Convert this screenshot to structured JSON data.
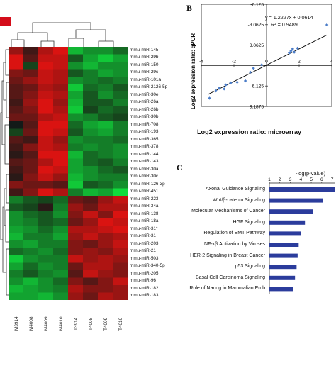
{
  "panel_b": {
    "letter": "B",
    "y_label": "Log2 expression ratio: qPCR",
    "x_label": "Log2 expression ratio: microarray",
    "equation": "y = 1.2227x + 0.0614",
    "r2": "R² = 0.9489",
    "y_ticks": [
      "9.1875",
      "6.125",
      "3.0625",
      "-3.0625",
      "-6.125"
    ],
    "x_ticks": [
      "-4",
      "-2",
      "0",
      "2",
      "4"
    ]
  },
  "panel_c": {
    "letter": "C",
    "axis_title": "-log(p-value)",
    "ticks": [
      "1",
      "2",
      "3",
      "4",
      "5",
      "6",
      "7"
    ]
  },
  "heatmap": {
    "genes": [
      "mmu-miR-145",
      "mmu-miR-29b",
      "mmu-miR-150",
      "mmu-miR-29c",
      "mmu-miR-101a",
      "mmu-miR-2126-5p",
      "mmu-miR-30e",
      "mmu-miR-26a",
      "mmu-miR-26b",
      "mmu-miR-30b",
      "mmu-miR-708",
      "mmu-miR-193",
      "mmu-miR-365",
      "mmu-miR-378",
      "mmu-miR-144",
      "mmu-miR-143",
      "mmu-miR-30a",
      "mmu-miR-30c",
      "mmu-miR-126-3p",
      "mmu-miR-451",
      "mmu-miR-223",
      "mmu-miR-34a",
      "mmu-miR-138",
      "mmu-miR-18a",
      "mmu-miR-31*",
      "mmu-miR-31",
      "mmu-miR-203",
      "mmu-miR-21",
      "mmu-miR-503",
      "mmu-miR-340-5p",
      "mmu-miR-205",
      "mmu-miR-96",
      "mmu-miR-182",
      "mmu-miR-183"
    ],
    "samples": [
      "M3914",
      "M4008",
      "M4009",
      "M4010",
      "T3914",
      "T4008",
      "T4009",
      "T4010"
    ],
    "values": [
      [
        0.6,
        0.2,
        0.7,
        0.9,
        -0.8,
        -0.6,
        -0.6,
        -0.4
      ],
      [
        0.9,
        0.3,
        0.8,
        0.8,
        -0.3,
        -0.7,
        -0.9,
        -0.7
      ],
      [
        0.9,
        -0.2,
        0.9,
        0.8,
        -0.6,
        -0.8,
        -0.6,
        -0.6
      ],
      [
        0.5,
        0.4,
        0.8,
        0.7,
        -0.3,
        -0.5,
        -0.7,
        -0.6
      ],
      [
        0.4,
        0.6,
        0.8,
        0.7,
        -0.6,
        -0.5,
        -0.4,
        -0.5
      ],
      [
        0.3,
        0.4,
        0.7,
        0.6,
        -0.9,
        -0.4,
        -0.5,
        -0.3
      ],
      [
        0.3,
        0.5,
        0.8,
        0.7,
        -0.7,
        -0.3,
        -0.6,
        -0.4
      ],
      [
        0.2,
        0.6,
        0.9,
        0.6,
        -0.8,
        -0.3,
        -0.3,
        -0.5
      ],
      [
        0.3,
        0.5,
        0.9,
        0.7,
        -0.9,
        -0.2,
        -0.4,
        -0.3
      ],
      [
        0.4,
        0.4,
        0.7,
        0.8,
        -0.6,
        -0.5,
        -0.3,
        -0.2
      ],
      [
        0.0,
        0.3,
        0.9,
        0.9,
        -0.4,
        -0.7,
        -0.8,
        -0.5
      ],
      [
        -0.2,
        0.4,
        0.9,
        0.8,
        -0.3,
        -0.6,
        -0.7,
        -0.5
      ],
      [
        0.3,
        0.2,
        0.8,
        0.6,
        -0.6,
        -0.5,
        -0.5,
        -0.4
      ],
      [
        0.2,
        0.5,
        0.8,
        0.7,
        -0.5,
        -0.6,
        -0.5,
        -0.6
      ],
      [
        0.1,
        0.3,
        0.9,
        0.9,
        -0.8,
        -0.4,
        -0.5,
        -0.6
      ],
      [
        0.3,
        0.4,
        0.7,
        0.9,
        -0.7,
        -0.4,
        -0.3,
        -0.5
      ],
      [
        0.2,
        0.4,
        0.9,
        0.8,
        -0.7,
        -0.6,
        -0.4,
        -0.3
      ],
      [
        0.1,
        0.5,
        0.8,
        0.6,
        -0.8,
        -0.6,
        -0.5,
        -0.5
      ],
      [
        0.5,
        0.4,
        0.4,
        0.3,
        -0.9,
        -0.3,
        -0.4,
        -0.6
      ],
      [
        0.2,
        0.5,
        0.9,
        0.7,
        -0.5,
        -0.8,
        -0.7,
        -1.0
      ],
      [
        -0.5,
        -0.3,
        -0.2,
        -0.4,
        0.4,
        0.3,
        0.6,
        0.8
      ],
      [
        -0.3,
        -0.2,
        0.1,
        -0.5,
        0.6,
        0.4,
        0.7,
        0.7
      ],
      [
        -0.6,
        -0.4,
        -0.3,
        -0.6,
        0.5,
        0.8,
        0.5,
        0.9
      ],
      [
        -0.6,
        -0.5,
        -0.3,
        -0.4,
        0.4,
        0.6,
        0.9,
        0.8
      ],
      [
        -0.7,
        -0.6,
        -0.4,
        -0.6,
        0.7,
        0.7,
        0.8,
        0.9
      ],
      [
        -0.8,
        -0.5,
        -0.5,
        -0.7,
        0.6,
        0.8,
        0.6,
        0.7
      ],
      [
        -0.6,
        -0.7,
        -0.5,
        -0.5,
        0.5,
        0.4,
        0.6,
        0.8
      ],
      [
        -0.4,
        -0.5,
        -0.6,
        -0.4,
        0.5,
        0.6,
        0.5,
        0.7
      ],
      [
        -0.9,
        -0.6,
        -0.5,
        -0.5,
        0.8,
        0.6,
        0.7,
        0.6
      ],
      [
        -0.7,
        -0.4,
        -0.6,
        -0.5,
        0.4,
        0.7,
        0.7,
        0.5
      ],
      [
        -0.5,
        -0.3,
        -0.5,
        -0.6,
        0.3,
        0.8,
        0.6,
        0.5
      ],
      [
        -0.6,
        -0.8,
        -0.6,
        -0.4,
        0.5,
        0.3,
        0.5,
        0.8
      ],
      [
        -0.8,
        -0.7,
        -0.6,
        -0.5,
        0.7,
        0.5,
        0.5,
        0.6
      ],
      [
        -0.7,
        -0.7,
        -0.8,
        -0.6,
        0.6,
        0.4,
        0.7,
        0.6
      ]
    ]
  },
  "chart_data": [
    {
      "type": "scatter",
      "xlabel": "Log2 expression ratio: microarray",
      "ylabel": "Log2 expression ratio: qPCR",
      "xlim": [
        -4,
        4
      ],
      "ylim": [
        -6.125,
        9.1875
      ],
      "x_ticks": [
        -4,
        -2,
        0,
        2,
        4
      ],
      "y_ticks": [
        -6.125,
        -3.0625,
        3.0625,
        6.125,
        9.1875
      ],
      "points": [
        {
          "x": -3.5,
          "y": -4.9
        },
        {
          "x": -3.1,
          "y": -3.8
        },
        {
          "x": -2.9,
          "y": -3.4
        },
        {
          "x": -2.6,
          "y": -3.5
        },
        {
          "x": -2.5,
          "y": -2.9
        },
        {
          "x": -2.2,
          "y": -2.6
        },
        {
          "x": -1.8,
          "y": -2.5
        },
        {
          "x": -1.3,
          "y": -2.3
        },
        {
          "x": -1.0,
          "y": -1.0
        },
        {
          "x": -0.8,
          "y": -0.4
        },
        {
          "x": -0.3,
          "y": 0.1
        },
        {
          "x": 1.4,
          "y": 1.9
        },
        {
          "x": 1.5,
          "y": 2.2
        },
        {
          "x": 1.6,
          "y": 2.5
        },
        {
          "x": 1.7,
          "y": 2.0
        },
        {
          "x": 1.9,
          "y": 2.6
        },
        {
          "x": 3.7,
          "y": 6.1
        }
      ],
      "trendline": {
        "slope": 1.2227,
        "intercept": 0.0614
      },
      "annotations": [
        "y = 1.2227x + 0.0614",
        "R² = 0.9489"
      ],
      "grid": false
    },
    {
      "type": "bar",
      "orientation": "horizontal",
      "title": "-log(p-value)",
      "categories": [
        "Axonal Guidance Signaling",
        "Wnt/β-catenin Signaling",
        "Molecular Mechanisms of Cancer",
        "HGF Signaling",
        "Regulation of EMT Pathway",
        "NF-κβ Activation by Viruses",
        "HER-2 Signaling in Breast Cancer",
        "p53 Signaling",
        "Basal Cell Carcinoma Signaling",
        "Role of Nanog in Mammalian Emb"
      ],
      "values": [
        7.3,
        6.1,
        5.2,
        4.4,
        4.0,
        3.8,
        3.7,
        3.6,
        3.45,
        3.3
      ],
      "xlim": [
        1,
        7.3
      ],
      "x_ticks": [
        1,
        2,
        3,
        4,
        5,
        6,
        7
      ],
      "colors": {
        "bar": "#2b3c9c"
      }
    }
  ]
}
